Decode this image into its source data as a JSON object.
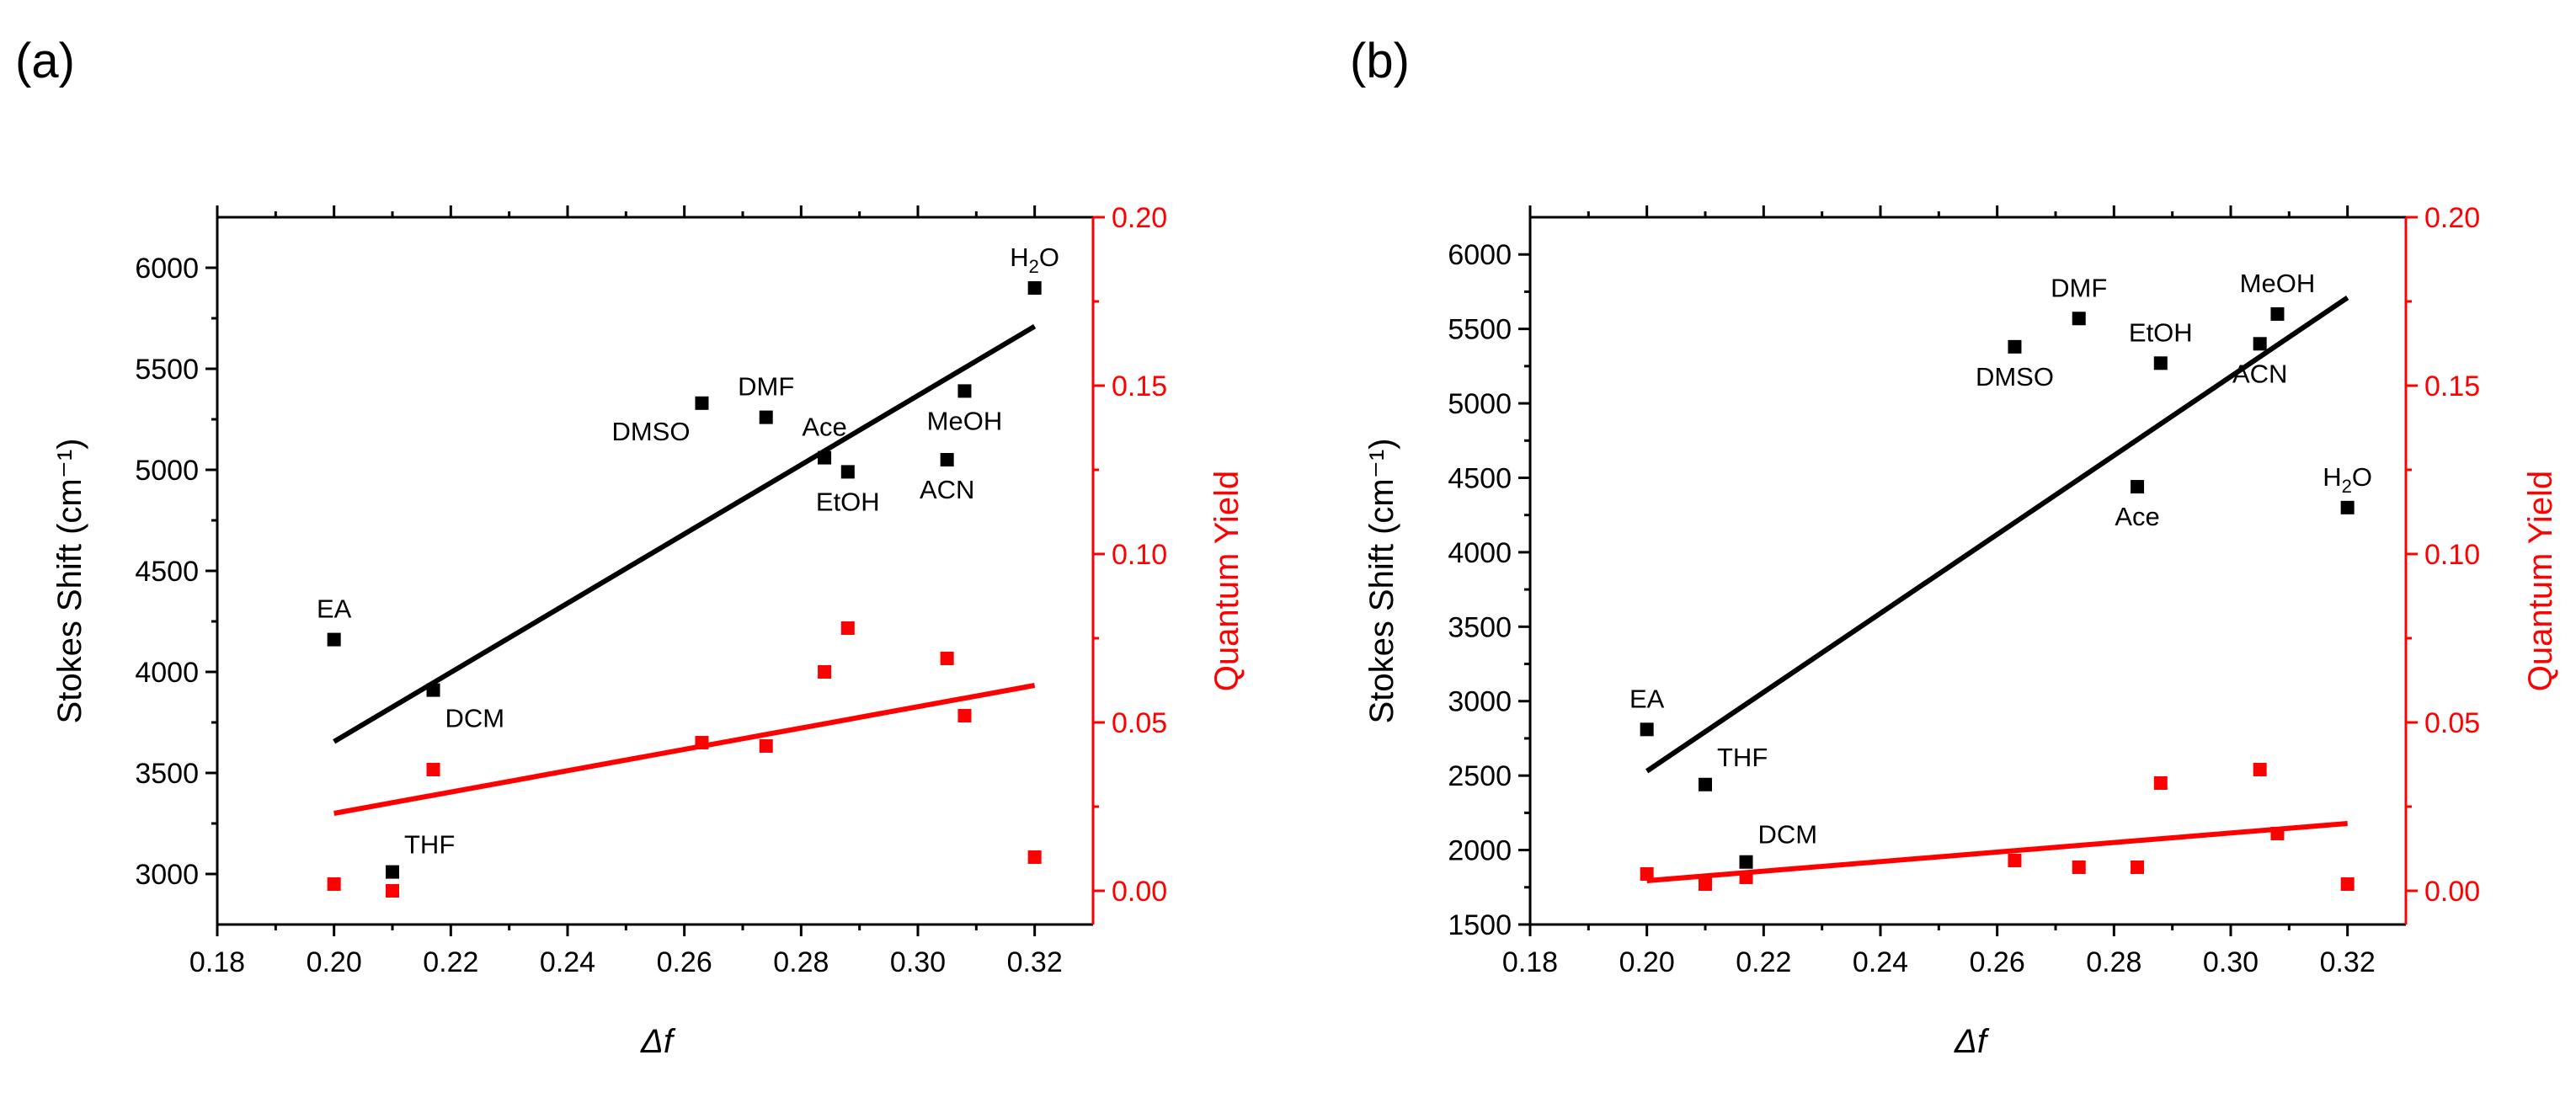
{
  "chart_data": [
    {
      "panel_label": "(a)",
      "type": "scatter",
      "xlabel": "Δf",
      "ylabel_left": "Stokes Shift (cm⁻¹)",
      "ylabel_right": "Quantum Yield",
      "xlim": [
        0.18,
        0.33
      ],
      "ylim_left": [
        2750,
        6250
      ],
      "ylim_right": [
        -0.01,
        0.2
      ],
      "xticks": [
        "0.18",
        "0.20",
        "0.22",
        "0.24",
        "0.26",
        "0.28",
        "0.30",
        "0.32"
      ],
      "yticks_left": [
        "3000",
        "3500",
        "4000",
        "4500",
        "5000",
        "5500",
        "6000"
      ],
      "yticks_right": [
        "0.00",
        "0.05",
        "0.10",
        "0.15",
        "0.20"
      ],
      "stokes_series": {
        "name": "Stokes Shift",
        "color": "#000000",
        "points": [
          {
            "label": "EA",
            "x": 0.2,
            "y": 4160
          },
          {
            "label": "THF",
            "x": 0.21,
            "y": 3010
          },
          {
            "label": "DCM",
            "x": 0.217,
            "y": 3910
          },
          {
            "label": "DMSO",
            "x": 0.263,
            "y": 5330
          },
          {
            "label": "DMF",
            "x": 0.274,
            "y": 5260
          },
          {
            "label": "Ace",
            "x": 0.284,
            "y": 5060
          },
          {
            "label": "EtOH",
            "x": 0.288,
            "y": 4990
          },
          {
            "label": "ACN",
            "x": 0.305,
            "y": 5050
          },
          {
            "label": "MeOH",
            "x": 0.308,
            "y": 5390
          },
          {
            "label": "H₂O",
            "x": 0.32,
            "y": 5900
          }
        ],
        "fit": {
          "x": [
            0.2,
            0.32
          ],
          "y": [
            3655,
            5710
          ]
        }
      },
      "qy_series": {
        "name": "Quantum Yield",
        "color": "#ff0000",
        "points": [
          {
            "x": 0.2,
            "y": 0.002
          },
          {
            "x": 0.21,
            "y": 0.0
          },
          {
            "x": 0.217,
            "y": 0.036
          },
          {
            "x": 0.263,
            "y": 0.044
          },
          {
            "x": 0.274,
            "y": 0.043
          },
          {
            "x": 0.284,
            "y": 0.065
          },
          {
            "x": 0.288,
            "y": 0.078
          },
          {
            "x": 0.305,
            "y": 0.069
          },
          {
            "x": 0.308,
            "y": 0.052
          },
          {
            "x": 0.32,
            "y": 0.01
          }
        ],
        "fit": {
          "x": [
            0.2,
            0.32
          ],
          "y": [
            0.023,
            0.061
          ]
        }
      },
      "labels": [
        {
          "text": "EA",
          "sub": "",
          "x": 0.2,
          "y": 4160,
          "anchor": "middle",
          "pos": "above"
        },
        {
          "text": "THF",
          "sub": "",
          "x": 0.21,
          "y": 3010,
          "anchor": "start",
          "pos": "above-right"
        },
        {
          "text": "DCM",
          "sub": "",
          "x": 0.217,
          "y": 3910,
          "anchor": "start",
          "pos": "below-right"
        },
        {
          "text": "DMSO",
          "sub": "",
          "x": 0.263,
          "y": 5330,
          "anchor": "end",
          "pos": "below-left"
        },
        {
          "text": "DMF",
          "sub": "",
          "x": 0.274,
          "y": 5260,
          "anchor": "middle",
          "pos": "above"
        },
        {
          "text": "Ace",
          "sub": "",
          "x": 0.284,
          "y": 5060,
          "anchor": "middle",
          "pos": "above"
        },
        {
          "text": "EtOH",
          "sub": "",
          "x": 0.288,
          "y": 4990,
          "anchor": "middle",
          "pos": "below"
        },
        {
          "text": "ACN",
          "sub": "",
          "x": 0.305,
          "y": 5050,
          "anchor": "middle",
          "pos": "below"
        },
        {
          "text": "MeOH",
          "sub": "",
          "x": 0.308,
          "y": 5390,
          "anchor": "middle",
          "pos": "below"
        },
        {
          "text": "H",
          "sub": "2",
          "tail": "O",
          "x": 0.32,
          "y": 5900,
          "anchor": "middle",
          "pos": "above"
        }
      ]
    },
    {
      "panel_label": "(b)",
      "type": "scatter",
      "xlabel": "Δf",
      "ylabel_left": "Stokes Shift (cm⁻¹)",
      "ylabel_right": "Quantum Yield",
      "xlim": [
        0.18,
        0.33
      ],
      "ylim_left": [
        1500,
        6250
      ],
      "ylim_right": [
        -0.01,
        0.2
      ],
      "xticks": [
        "0.18",
        "0.20",
        "0.22",
        "0.24",
        "0.26",
        "0.28",
        "0.30",
        "0.32"
      ],
      "yticks_left": [
        "1500",
        "2000",
        "2500",
        "3000",
        "3500",
        "4000",
        "4500",
        "5000",
        "5500",
        "6000"
      ],
      "yticks_right": [
        "0.00",
        "0.05",
        "0.10",
        "0.15",
        "0.20"
      ],
      "stokes_series": {
        "name": "Stokes Shift",
        "color": "#000000",
        "points": [
          {
            "label": "EA",
            "x": 0.2,
            "y": 2810
          },
          {
            "label": "THF",
            "x": 0.21,
            "y": 2440
          },
          {
            "label": "DCM",
            "x": 0.217,
            "y": 1920
          },
          {
            "label": "DMSO",
            "x": 0.263,
            "y": 5380
          },
          {
            "label": "DMF",
            "x": 0.274,
            "y": 5570
          },
          {
            "label": "Ace",
            "x": 0.284,
            "y": 4440
          },
          {
            "label": "EtOH",
            "x": 0.288,
            "y": 5270
          },
          {
            "label": "ACN",
            "x": 0.305,
            "y": 5400
          },
          {
            "label": "MeOH",
            "x": 0.308,
            "y": 5600
          },
          {
            "label": "H₂O",
            "x": 0.32,
            "y": 4300
          }
        ],
        "fit": {
          "x": [
            0.2,
            0.32
          ],
          "y": [
            2530,
            5710
          ]
        }
      },
      "qy_series": {
        "name": "Quantum Yield",
        "color": "#ff0000",
        "points": [
          {
            "x": 0.2,
            "y": 0.005
          },
          {
            "x": 0.21,
            "y": 0.002
          },
          {
            "x": 0.217,
            "y": 0.004
          },
          {
            "x": 0.263,
            "y": 0.009
          },
          {
            "x": 0.274,
            "y": 0.007
          },
          {
            "x": 0.284,
            "y": 0.007
          },
          {
            "x": 0.288,
            "y": 0.032
          },
          {
            "x": 0.305,
            "y": 0.036
          },
          {
            "x": 0.308,
            "y": 0.017
          },
          {
            "x": 0.32,
            "y": 0.002
          }
        ],
        "fit": {
          "x": [
            0.2,
            0.32
          ],
          "y": [
            0.003,
            0.02
          ]
        }
      },
      "labels": [
        {
          "text": "EA",
          "sub": "",
          "x": 0.2,
          "y": 2810,
          "anchor": "middle",
          "pos": "above"
        },
        {
          "text": "THF",
          "sub": "",
          "x": 0.21,
          "y": 2440,
          "anchor": "start",
          "pos": "above-right"
        },
        {
          "text": "DCM",
          "sub": "",
          "x": 0.217,
          "y": 1920,
          "anchor": "start",
          "pos": "above-right"
        },
        {
          "text": "DMSO",
          "sub": "",
          "x": 0.263,
          "y": 5380,
          "anchor": "middle",
          "pos": "below"
        },
        {
          "text": "DMF",
          "sub": "",
          "x": 0.274,
          "y": 5570,
          "anchor": "middle",
          "pos": "above"
        },
        {
          "text": "Ace",
          "sub": "",
          "x": 0.284,
          "y": 4440,
          "anchor": "middle",
          "pos": "below"
        },
        {
          "text": "EtOH",
          "sub": "",
          "x": 0.288,
          "y": 5270,
          "anchor": "middle",
          "pos": "above"
        },
        {
          "text": "ACN",
          "sub": "",
          "x": 0.305,
          "y": 5400,
          "anchor": "middle",
          "pos": "below"
        },
        {
          "text": "MeOH",
          "sub": "",
          "x": 0.308,
          "y": 5600,
          "anchor": "middle",
          "pos": "above"
        },
        {
          "text": "H",
          "sub": "2",
          "tail": "O",
          "x": 0.32,
          "y": 4300,
          "anchor": "middle",
          "pos": "above"
        }
      ]
    }
  ]
}
